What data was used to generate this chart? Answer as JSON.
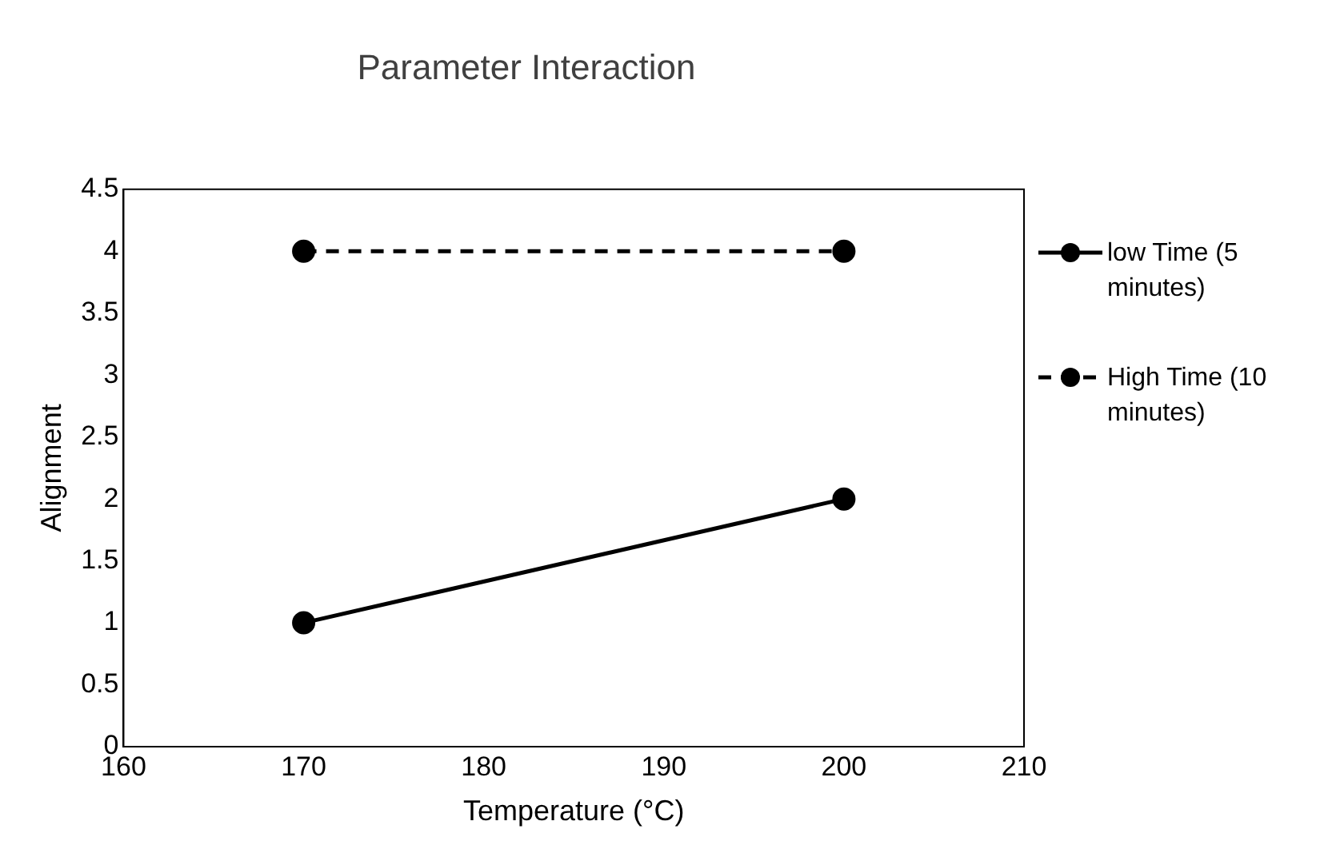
{
  "chart_data": {
    "type": "line",
    "title": "Parameter Interaction",
    "xlabel": "Temperature (°C)",
    "ylabel": "Alignment",
    "x": [
      170,
      200
    ],
    "series": [
      {
        "name": "low Time (5 minutes)",
        "color": "#000000",
        "values": [
          1,
          2
        ],
        "line_style": "solid"
      },
      {
        "name": "High Time (10 minutes)",
        "color": "#000000",
        "values": [
          4,
          4
        ],
        "line_style": "dashed"
      }
    ],
    "xlim": [
      160,
      210
    ],
    "xticks": [
      160,
      170,
      180,
      190,
      200,
      210
    ],
    "ylim": [
      0,
      4.5
    ],
    "yticks": [
      0,
      0.5,
      1,
      1.5,
      2,
      2.5,
      3,
      3.5,
      4,
      4.5
    ],
    "grid": false,
    "legend": "right",
    "marker": "circle"
  }
}
